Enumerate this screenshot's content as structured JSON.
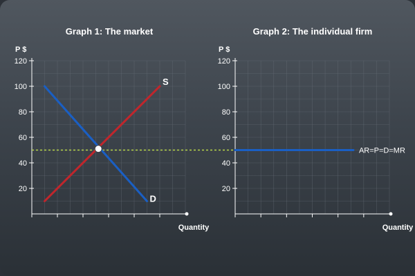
{
  "chart_data": [
    {
      "type": "line",
      "title": "Graph 1: The market",
      "ylabel": "P $",
      "xlabel": "Quantity",
      "ylim": [
        0,
        120
      ],
      "y_ticks": [
        20,
        40,
        60,
        80,
        100,
        120
      ],
      "xlim": [
        0,
        12
      ],
      "grid": true,
      "series": [
        {
          "name": "S",
          "color": "#c0262c",
          "points": [
            [
              1,
              10
            ],
            [
              10,
              100
            ]
          ]
        },
        {
          "name": "D",
          "color": "#1a5fc4",
          "points": [
            [
              1,
              100
            ],
            [
              9,
              10
            ]
          ]
        }
      ],
      "equilibrium": {
        "x": 5.2,
        "y": 51,
        "color": "#ffffff"
      },
      "price_line": {
        "y": 50,
        "color": "#b8d84a"
      }
    },
    {
      "type": "line",
      "title": "Graph 2: The individual firm",
      "ylabel": "P $",
      "xlabel": "Quantity",
      "ylim": [
        0,
        120
      ],
      "y_ticks": [
        20,
        40,
        60,
        80,
        100,
        120
      ],
      "xlim": [
        0,
        12
      ],
      "grid": true,
      "series": [
        {
          "name": "AR=P=D=MR",
          "color": "#1a5fc4",
          "points": [
            [
              0,
              50
            ],
            [
              9.2,
              50
            ]
          ]
        }
      ]
    }
  ]
}
